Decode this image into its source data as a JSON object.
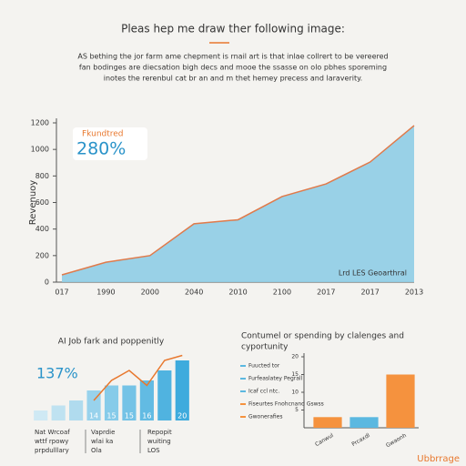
{
  "header": {
    "title": "Pleas hep me draw ther following image:",
    "text": [
      "AS bething the jor farm ame chepment is rnail art is that inlae collrert to be vereered",
      "fan bodinges are diecsation bigh decs and mooe the ssasse on olo pbhes sporeming",
      "inotes the rerenbul cat br an and m thet hemey precess and laraverity."
    ]
  },
  "chart_data": [
    {
      "type": "area",
      "y_label": "Revenuoy",
      "categories": [
        "017",
        "1990",
        "2000",
        "2040",
        "2010",
        "2100",
        "2017",
        "2017",
        "2013"
      ],
      "values": [
        55,
        150,
        200,
        440,
        470,
        645,
        740,
        905,
        1180
      ],
      "color": "#8fcde6",
      "line_color": "#e07a4a",
      "ylim": [
        0,
        1200
      ],
      "yticks": [
        0,
        200,
        400,
        600,
        800,
        1000,
        1200
      ],
      "grid": false,
      "annotation": {
        "label": "Fkundtred",
        "value": "280%"
      },
      "note": "Lrd LES Geoarthral"
    },
    {
      "type": "bar",
      "title": "AI Job fark and poppenitly",
      "annotation": "137%",
      "values": [
        10,
        11,
        12,
        14,
        15,
        15,
        16,
        18,
        20
      ],
      "value_labels": [
        null,
        null,
        null,
        "14",
        "15",
        "15",
        "16",
        null,
        "20"
      ],
      "colors": [
        "#cfe9f4",
        "#bfe2f1",
        "#b0dbee",
        "#98d2ec",
        "#86cbe9",
        "#74c3e6",
        "#62bbe3",
        "#50b3e0",
        "#3eabdd"
      ],
      "line_values": [
        null,
        null,
        null,
        12,
        16,
        18,
        15,
        20,
        21
      ],
      "line_color": "#e8782e",
      "ylim": [
        8,
        22
      ],
      "notes": [
        [
          "Nat Wrcoaf",
          "wttf rpowy",
          "prpdulllary"
        ],
        [
          "Vaprdie",
          "wlai ka",
          "Ola"
        ],
        [
          "Repopit",
          "wuiting",
          "LOS"
        ]
      ]
    },
    {
      "type": "bar",
      "title": [
        "Contumel or spending by clalenges and",
        "cyportunity"
      ],
      "categories": [
        "Canwul",
        "Prcaxdl",
        "Gwaonh"
      ],
      "values": [
        3,
        3,
        15
      ],
      "colors": [
        "#f5923e",
        "#5bb8e0",
        "#f5923e"
      ],
      "ylim": [
        0,
        20
      ],
      "yticks": [
        5,
        10,
        15,
        20
      ],
      "legend": [
        {
          "name": "Fuucted tor",
          "color": "#5bb8e0"
        },
        {
          "name": "Furfeaslatey Pegrall",
          "color": "#5bb8e0"
        },
        {
          "name": "Icaf ccl ntc.",
          "color": "#5bb8e0"
        },
        {
          "name": "Fiseurtes Fnohcnand Gswss",
          "color": "#f5923e"
        },
        {
          "name": "Gwonerafies",
          "color": "#f5923e"
        }
      ]
    }
  ],
  "footer": "Ubbrrage"
}
